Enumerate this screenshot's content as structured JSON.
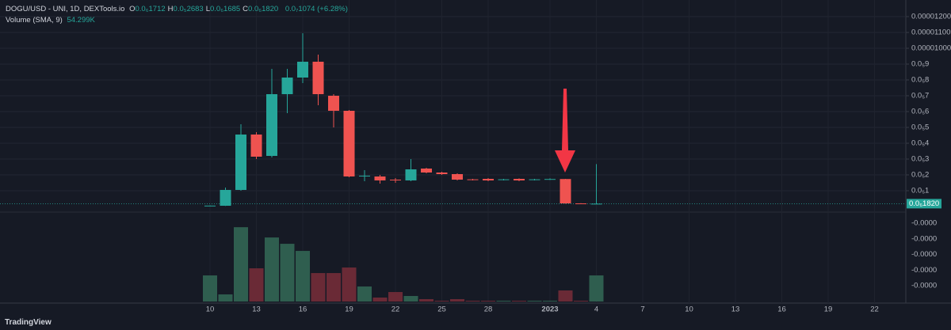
{
  "chart_data": {
    "type": "candlestick",
    "symbol": "DOGU/USD - UNI, 1D, DEXTools.io",
    "ohlc_header": [
      {
        "key": "O",
        "text": "0.0₆1712"
      },
      {
        "key": "H",
        "text": "0.0₅2683"
      },
      {
        "key": "L",
        "text": "0.0₆1685"
      },
      {
        "key": "C",
        "text": "0.0₆1820"
      }
    ],
    "change_text": "0.0₇1074 (+6.28%)",
    "volume_legend": "Volume (SMA, 9)",
    "volume_sma_text": "54.299K",
    "brand": "TradingView",
    "categories": [
      "10",
      null,
      null,
      "13",
      null,
      null,
      "16",
      null,
      null,
      "19",
      null,
      null,
      "22",
      null,
      null,
      "25",
      null,
      null,
      "28",
      null,
      null,
      null,
      "2023",
      null,
      null,
      "4",
      null,
      null,
      "7",
      null,
      null,
      "10",
      null,
      null,
      "13",
      null,
      null,
      "16",
      null,
      null,
      "19",
      null,
      null,
      "22",
      null
    ],
    "open": [
      5e-08,
      5e-08,
      1.05e-06,
      4.55e-06,
      3.2e-06,
      7.1e-06,
      8.15e-06,
      9.15e-06,
      7e-06,
      6.05e-06,
      1.9e-06,
      1.9e-06,
      1.7e-06,
      1.65e-06,
      2.4e-06,
      2.15e-06,
      2.05e-06,
      1.72e-06,
      1.75e-06,
      1.68e-06,
      1.75e-06,
      1.68e-06,
      1.7e-06,
      1.74e-06,
      2e-07,
      1.712e-07,
      null,
      null,
      null,
      null,
      null,
      null,
      null,
      null,
      null,
      null,
      null,
      null,
      null,
      null,
      null,
      null,
      null,
      null,
      null
    ],
    "high": [
      7e-08,
      1.2e-06,
      5.2e-06,
      4.7e-06,
      8.7e-06,
      8.7e-06,
      1.095e-05,
      9.6e-06,
      7.1e-06,
      6.1e-06,
      2.3e-06,
      2e-06,
      1.8e-06,
      3e-06,
      2.45e-06,
      2.2e-06,
      2.1e-06,
      1.75e-06,
      1.8e-06,
      1.75e-06,
      1.78e-06,
      1.75e-06,
      1.78e-06,
      1.75e-06,
      2.1e-07,
      2.683e-06,
      null,
      null,
      null,
      null,
      null,
      null,
      null,
      null,
      null,
      null,
      null,
      null,
      null,
      null,
      null,
      null,
      null,
      null,
      null
    ],
    "low": [
      4e-08,
      4e-08,
      1e-06,
      3e-06,
      3.1e-06,
      5.9e-06,
      7.8e-06,
      6.4e-06,
      5e-06,
      1.85e-06,
      1.6e-06,
      1.45e-06,
      1.5e-06,
      1.6e-06,
      2.1e-06,
      2e-06,
      1.65e-06,
      1.65e-06,
      1.6e-06,
      1.65e-06,
      1.6e-06,
      1.65e-06,
      1.68e-06,
      1.8e-07,
      1.5e-07,
      1.685e-07,
      null,
      null,
      null,
      null,
      null,
      null,
      null,
      null,
      null,
      null,
      null,
      null,
      null,
      null,
      null,
      null,
      null,
      null,
      null
    ],
    "close": [
      6e-08,
      1.05e-06,
      4.55e-06,
      3.15e-06,
      7.1e-06,
      8.15e-06,
      9.15e-06,
      7.1e-06,
      6.05e-06,
      1.9e-06,
      1.95e-06,
      1.65e-06,
      1.65e-06,
      2.35e-06,
      2.15e-06,
      2.05e-06,
      1.7e-06,
      1.7e-06,
      1.65e-06,
      1.72e-06,
      1.65e-06,
      1.72e-06,
      1.74e-06,
      2e-07,
      1.7e-07,
      1.82e-07,
      null,
      null,
      null,
      null,
      null,
      null,
      null,
      null,
      null,
      null,
      null,
      null,
      null,
      null,
      null,
      null,
      null,
      null,
      null
    ],
    "volume": [
      297000,
      81000,
      846000,
      378000,
      729000,
      657000,
      576000,
      324000,
      324000,
      387000,
      171000,
      45000,
      108000,
      63000,
      27000,
      9000,
      27000,
      9000,
      9000,
      9000,
      9000,
      9000,
      9000,
      126000,
      9000,
      297000,
      null,
      null,
      null,
      null,
      null,
      null,
      null,
      null,
      null,
      null,
      null,
      null,
      null,
      null,
      null,
      null,
      null,
      null,
      null
    ],
    "up_color": "#26a69a",
    "down_color": "#ef5350",
    "volume_up_color": "#2f5e4f",
    "volume_down_color": "#6a2a36",
    "ylim": [
      0,
      1.3e-05
    ],
    "yticks": [
      {
        "value": 1e-06,
        "label": "0.0₅1"
      },
      {
        "value": 2e-06,
        "label": "0.0₅2"
      },
      {
        "value": 3e-06,
        "label": "0.0₅3"
      },
      {
        "value": 4e-06,
        "label": "0.0₅4"
      },
      {
        "value": 5e-06,
        "label": "0.0₅5"
      },
      {
        "value": 6e-06,
        "label": "0.0₅6"
      },
      {
        "value": 7e-06,
        "label": "0.0₅7"
      },
      {
        "value": 8e-06,
        "label": "0.0₅8"
      },
      {
        "value": 9e-06,
        "label": "0.0₅9"
      },
      {
        "value": 1e-05,
        "label": "0.00001000"
      },
      {
        "value": 1.1e-05,
        "label": "0.00001100"
      },
      {
        "value": 1.2e-05,
        "label": "0.00001200"
      }
    ],
    "last_price": {
      "value": 1.82e-07,
      "label": "0.0₆1820"
    },
    "volume_ylim": [
      0,
      1000000
    ],
    "volume_axis_labels": [
      "-0.0000",
      "-0.0000",
      "-0.0000",
      "-0.0000",
      "-0.0000"
    ],
    "grid": true
  }
}
